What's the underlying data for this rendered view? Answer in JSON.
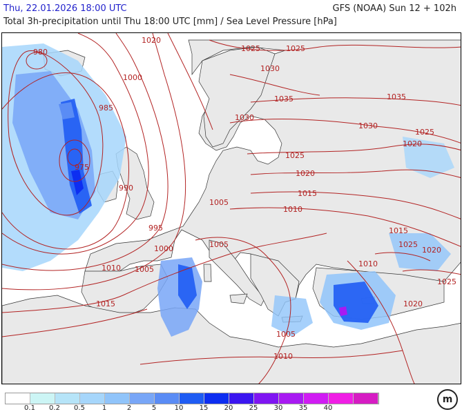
{
  "header": {
    "date": "Thu, 22.01.2026 18:00 UTC",
    "model": "GFS (NOAA) Sun 12 + 102h",
    "subtitle": "Total 3h-precipitation until Thu 18:00 UTC [mm] / Sea Level Pressure [hPa]"
  },
  "isobar_labels": [
    "980",
    "1020",
    "1025",
    "1025",
    "1030",
    "1000",
    "1035",
    "985",
    "1030",
    "1035",
    "1030",
    "1025",
    "975",
    "1025",
    "1020",
    "1020",
    "990",
    "1015",
    "1005",
    "1010",
    "995",
    "1015",
    "1005",
    "1000",
    "1025",
    "1020",
    "1010",
    "1010",
    "1005",
    "1025",
    "1015",
    "1020",
    "1005",
    "1010"
  ],
  "legend": {
    "colors": [
      "#ffffff",
      "#ccf5f5",
      "#b6e4f8",
      "#a6d6fb",
      "#90c4fa",
      "#78a6f7",
      "#5a8cf5",
      "#1f5cf3",
      "#0d2ef1",
      "#3b16f0",
      "#7f15f2",
      "#a81af2",
      "#d01cf3",
      "#f01ee5",
      "#d61cc3"
    ],
    "ticks": [
      "0.1",
      "0.2",
      "0.5",
      "1",
      "2",
      "5",
      "10",
      "15",
      "20",
      "25",
      "30",
      "35",
      "40"
    ]
  },
  "logo": "m"
}
